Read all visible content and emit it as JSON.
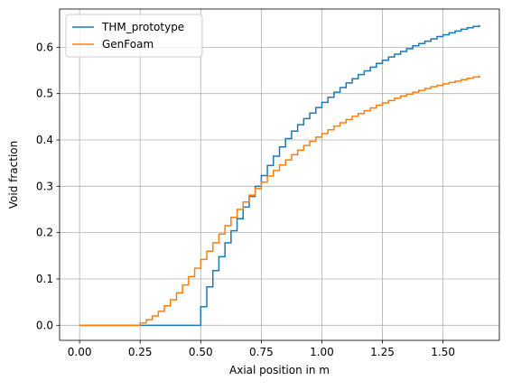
{
  "chart_data": {
    "type": "line",
    "step": true,
    "title": "",
    "xlabel": "Axial position in m",
    "ylabel": "Void fraction",
    "xlim": [
      -0.0825,
      1.7325
    ],
    "ylim": [
      -0.0325,
      0.6825
    ],
    "xticks": [
      0.0,
      0.25,
      0.5,
      0.75,
      1.0,
      1.25,
      1.5
    ],
    "xtick_labels": [
      "0.00",
      "0.25",
      "0.50",
      "0.75",
      "1.00",
      "1.25",
      "1.50"
    ],
    "yticks": [
      0.0,
      0.1,
      0.2,
      0.3,
      0.4,
      0.5,
      0.6
    ],
    "ytick_labels": [
      "0.0",
      "0.1",
      "0.2",
      "0.3",
      "0.4",
      "0.5",
      "0.6"
    ],
    "grid": true,
    "legend_position": "top-left",
    "series": [
      {
        "name": "THM_prototype",
        "color": "#1f77b4",
        "x": [
          0.0,
          0.4875,
          0.5,
          0.525,
          0.55,
          0.575,
          0.6,
          0.625,
          0.65,
          0.675,
          0.7,
          0.725,
          0.75,
          0.775,
          0.8,
          0.825,
          0.85,
          0.875,
          0.9,
          0.925,
          0.95,
          0.975,
          1.0,
          1.025,
          1.05,
          1.075,
          1.1,
          1.125,
          1.15,
          1.175,
          1.2,
          1.225,
          1.25,
          1.275,
          1.3,
          1.325,
          1.35,
          1.375,
          1.4,
          1.425,
          1.45,
          1.475,
          1.5,
          1.525,
          1.55,
          1.575,
          1.6,
          1.625,
          1.65
        ],
        "y": [
          0.0,
          0.0,
          0.04,
          0.083,
          0.118,
          0.148,
          0.178,
          0.204,
          0.23,
          0.255,
          0.278,
          0.3,
          0.323,
          0.345,
          0.365,
          0.385,
          0.403,
          0.419,
          0.433,
          0.446,
          0.458,
          0.47,
          0.481,
          0.492,
          0.503,
          0.513,
          0.523,
          0.532,
          0.541,
          0.549,
          0.557,
          0.565,
          0.572,
          0.579,
          0.585,
          0.591,
          0.597,
          0.603,
          0.608,
          0.613,
          0.618,
          0.623,
          0.627,
          0.631,
          0.635,
          0.639,
          0.642,
          0.645,
          0.648
        ]
      },
      {
        "name": "GenFoam",
        "color": "#ff7f0e",
        "x": [
          0.0,
          0.2375,
          0.25,
          0.275,
          0.3,
          0.325,
          0.35,
          0.375,
          0.4,
          0.425,
          0.45,
          0.475,
          0.5,
          0.525,
          0.55,
          0.575,
          0.6,
          0.625,
          0.65,
          0.675,
          0.7,
          0.725,
          0.75,
          0.775,
          0.8,
          0.825,
          0.85,
          0.875,
          0.9,
          0.925,
          0.95,
          0.975,
          1.0,
          1.025,
          1.05,
          1.075,
          1.1,
          1.125,
          1.15,
          1.175,
          1.2,
          1.225,
          1.25,
          1.275,
          1.3,
          1.325,
          1.35,
          1.375,
          1.4,
          1.425,
          1.45,
          1.475,
          1.5,
          1.525,
          1.55,
          1.575,
          1.6,
          1.625,
          1.65
        ],
        "y": [
          0.0,
          0.0,
          0.005,
          0.012,
          0.02,
          0.03,
          0.042,
          0.055,
          0.07,
          0.087,
          0.105,
          0.123,
          0.142,
          0.16,
          0.178,
          0.197,
          0.215,
          0.233,
          0.25,
          0.266,
          0.281,
          0.295,
          0.309,
          0.322,
          0.334,
          0.346,
          0.357,
          0.368,
          0.378,
          0.388,
          0.397,
          0.406,
          0.414,
          0.422,
          0.43,
          0.437,
          0.444,
          0.451,
          0.457,
          0.463,
          0.469,
          0.475,
          0.48,
          0.485,
          0.49,
          0.495,
          0.499,
          0.503,
          0.507,
          0.511,
          0.515,
          0.518,
          0.521,
          0.524,
          0.527,
          0.53,
          0.533,
          0.536,
          0.539
        ]
      }
    ]
  }
}
